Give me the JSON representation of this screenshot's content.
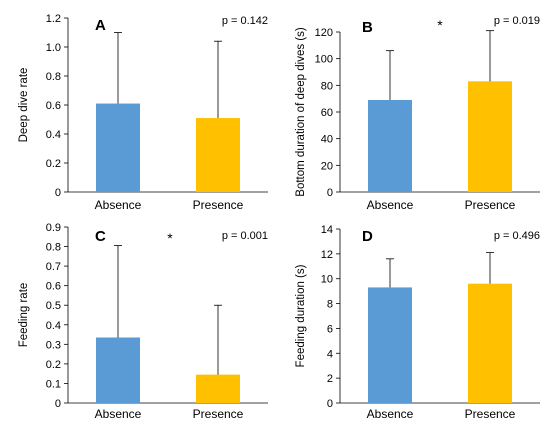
{
  "chart_data": [
    {
      "panel": "A",
      "type": "bar",
      "categories": [
        "Absence",
        "Presence"
      ],
      "values": [
        0.61,
        0.51
      ],
      "errors": [
        0.49,
        0.53
      ],
      "colors": [
        "#5b9bd5",
        "#ffc000"
      ],
      "ylabel": "Deep dive rate",
      "ylim": [
        0,
        1.2
      ],
      "yticks": [
        "0",
        "0.2",
        "0.4",
        "0.6",
        "0.8",
        "1.0",
        "1.2"
      ],
      "annotation": "p = 0.142",
      "significance": ""
    },
    {
      "panel": "B",
      "type": "bar",
      "categories": [
        "Absence",
        "Presence"
      ],
      "values": [
        69,
        83
      ],
      "errors": [
        37,
        38
      ],
      "colors": [
        "#5b9bd5",
        "#ffc000"
      ],
      "ylabel": "Bottom duration of deep dives (s)",
      "ylim": [
        0,
        120
      ],
      "yticks": [
        "0",
        "20",
        "40",
        "60",
        "80",
        "100",
        "120"
      ],
      "annotation": "p = 0.019",
      "significance": "*"
    },
    {
      "panel": "C",
      "type": "bar",
      "categories": [
        "Absence",
        "Presence"
      ],
      "values": [
        0.335,
        0.145
      ],
      "errors": [
        0.47,
        0.355
      ],
      "colors": [
        "#5b9bd5",
        "#ffc000"
      ],
      "ylabel": "Feeding rate",
      "ylim": [
        0,
        0.9
      ],
      "yticks": [
        "0",
        "0.1",
        "0.2",
        "0.3",
        "0.4",
        "0.5",
        "0.6",
        "0.7",
        "0.8",
        "0.9"
      ],
      "annotation": "p = 0.001",
      "significance": "*"
    },
    {
      "panel": "D",
      "type": "bar",
      "categories": [
        "Absence",
        "Presence"
      ],
      "values": [
        9.3,
        9.6
      ],
      "errors": [
        2.3,
        2.5
      ],
      "colors": [
        "#5b9bd5",
        "#ffc000"
      ],
      "ylabel": "Feeding duration (s)",
      "ylim": [
        0,
        14
      ],
      "yticks": [
        "0",
        "2",
        "4",
        "6",
        "8",
        "10",
        "12",
        "14"
      ],
      "annotation": "p = 0.496",
      "significance": ""
    }
  ]
}
